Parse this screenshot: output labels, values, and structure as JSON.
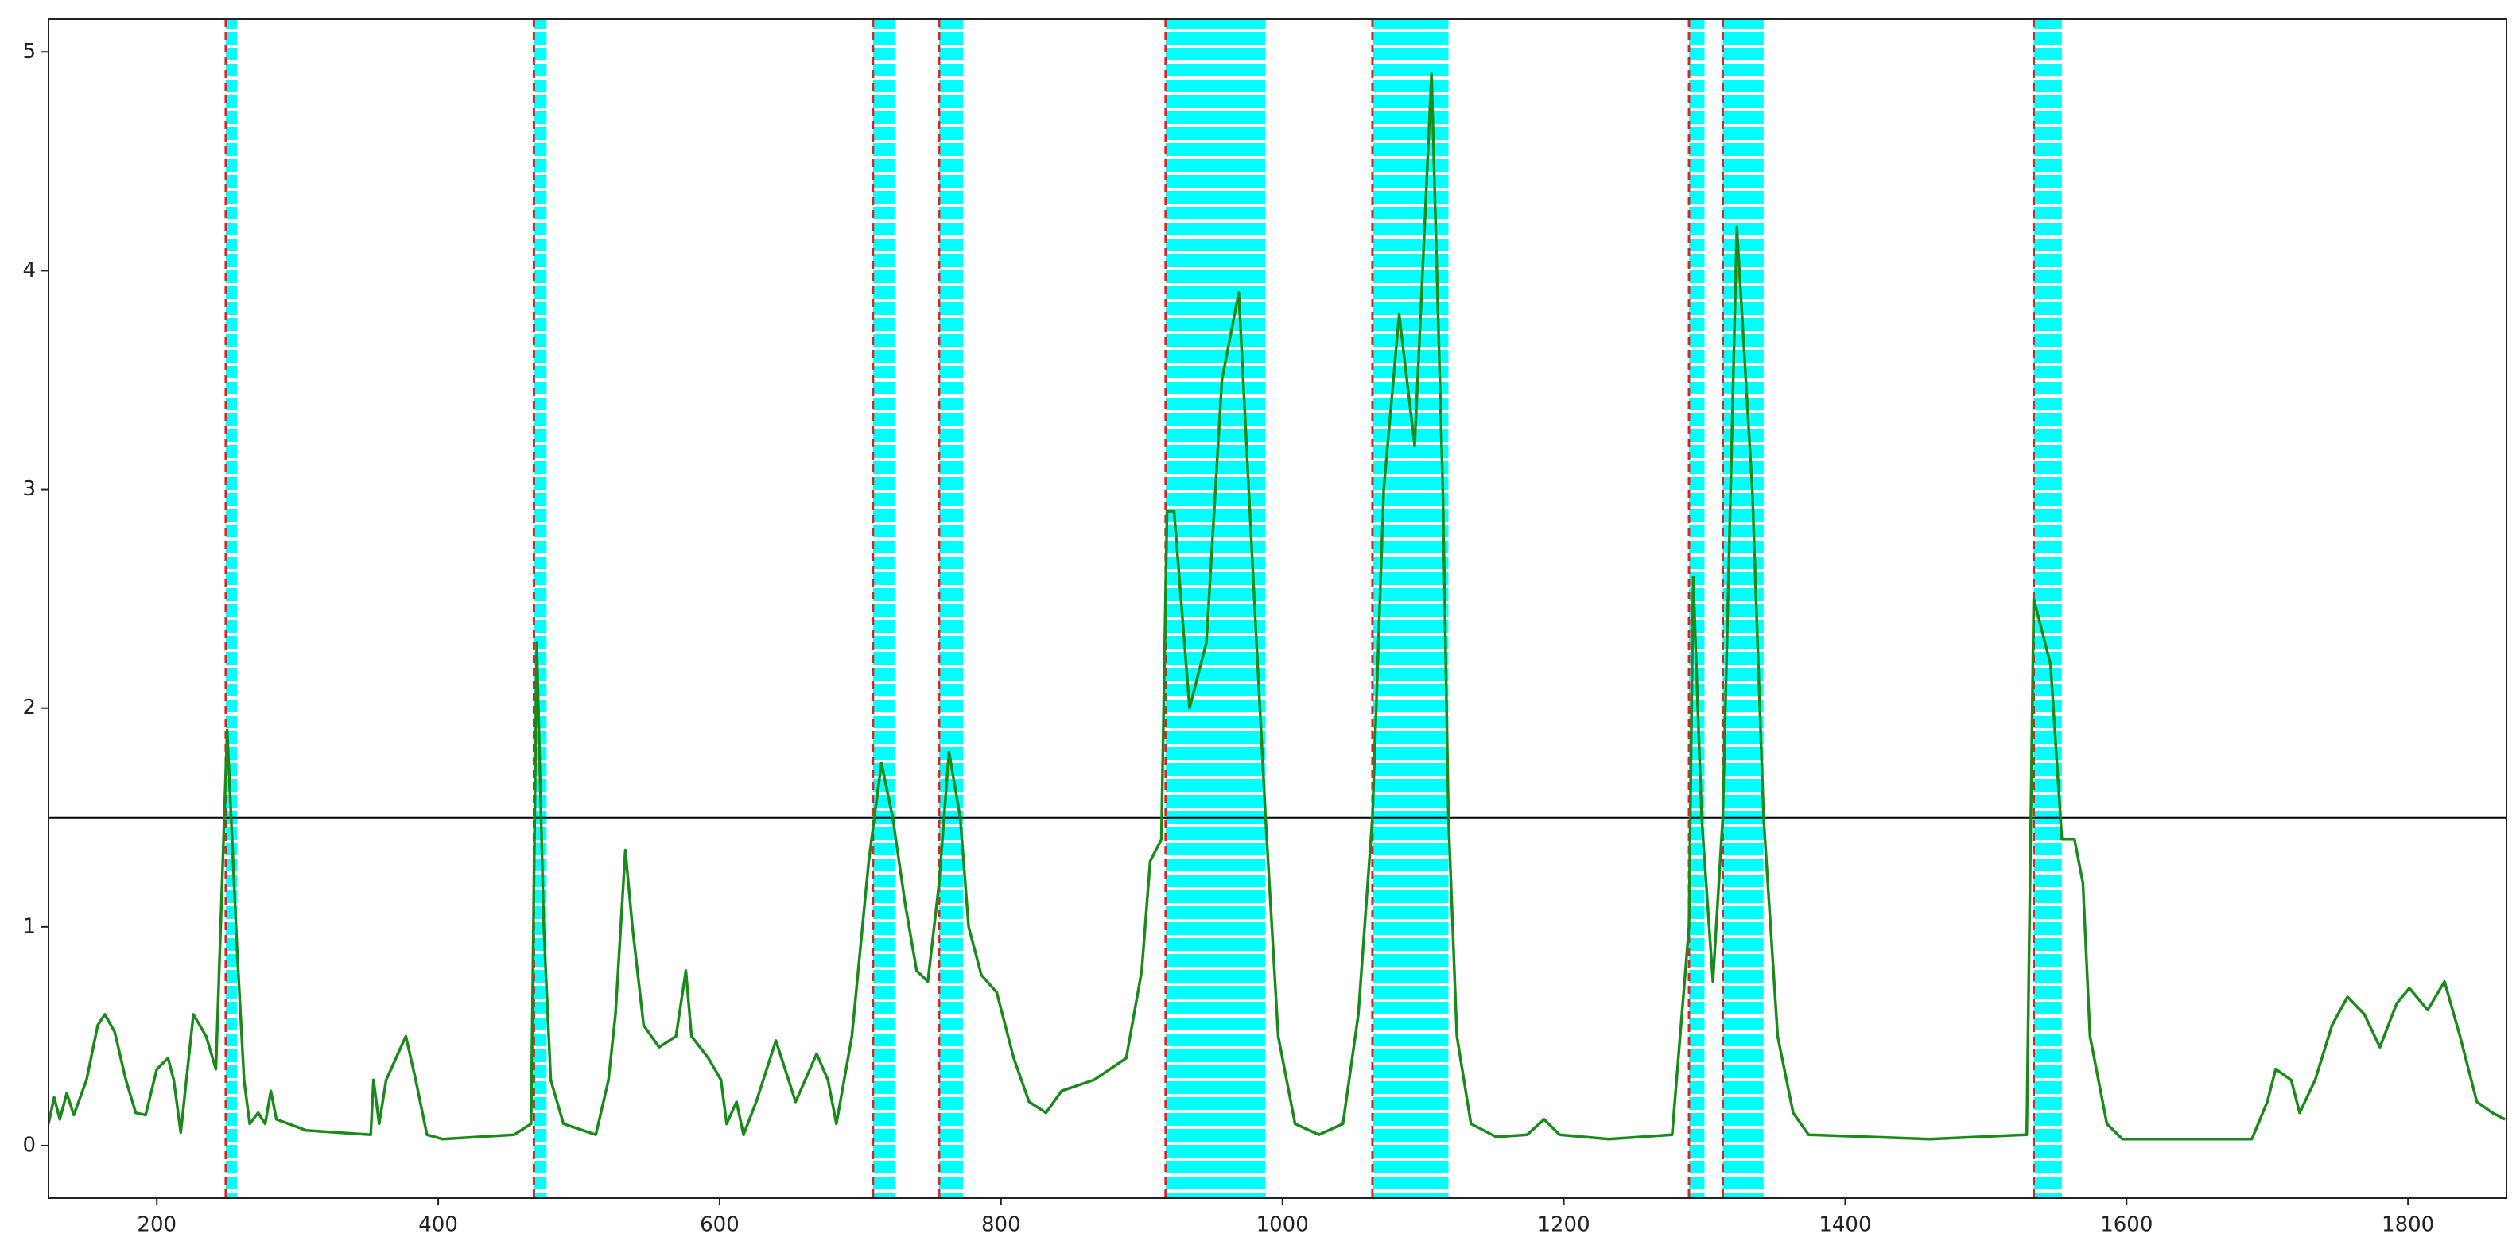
{
  "chart_data": {
    "type": "line",
    "xlim": [
      123,
      1870
    ],
    "ylim": [
      -0.24,
      5.15
    ],
    "xticks": [
      200,
      400,
      600,
      800,
      1000,
      1200,
      1400,
      1600,
      1800
    ],
    "yticks": [
      0,
      1,
      2,
      3,
      4,
      5
    ],
    "grid": false,
    "threshold": 1.5,
    "threshold_color": "#000000",
    "marker_color": "#d62728",
    "span_color": "#00ffff",
    "markers": [
      249,
      468,
      709,
      756,
      917,
      1064,
      1289,
      1313,
      1534
    ],
    "spans": [
      [
        249,
        257
      ],
      [
        468,
        477
      ],
      [
        709,
        725
      ],
      [
        756,
        773
      ],
      [
        917,
        988
      ],
      [
        1064,
        1118
      ],
      [
        1289,
        1300
      ],
      [
        1313,
        1342
      ],
      [
        1534,
        1554
      ]
    ],
    "series": [
      {
        "color": "#1a8a1a",
        "x": [
          123,
          127,
          131,
          136,
          141,
          150,
          158,
          163,
          170,
          178,
          185,
          192,
          200,
          208,
          212,
          217,
          226,
          235,
          242,
          250,
          257,
          262,
          266,
          272,
          277,
          281,
          285,
          306,
          352,
          354,
          358,
          363,
          370,
          377,
          384,
          392,
          403,
          454,
          466,
          470,
          475,
          480,
          489,
          512,
          521,
          526,
          533,
          538,
          546,
          557,
          569,
          576,
          580,
          592,
          601,
          605,
          612,
          617,
          626,
          640,
          649,
          654,
          669,
          677,
          683,
          694,
          706,
          715,
          723,
          732,
          740,
          748,
          756,
          763,
          771,
          777,
          786,
          797,
          809,
          820,
          832,
          843,
          866,
          889,
          900,
          906,
          914,
          918,
          923,
          934,
          946,
          957,
          969,
          980,
          988,
          997,
          1009,
          1026,
          1043,
          1054,
          1064,
          1072,
          1083,
          1094,
          1106,
          1114,
          1118,
          1124,
          1134,
          1152,
          1174,
          1186,
          1197,
          1232,
          1277,
          1289,
          1292,
          1298,
          1306,
          1313,
          1323,
          1334,
          1342,
          1352,
          1363,
          1374,
          1460,
          1529,
          1534,
          1546,
          1554,
          1563,
          1569,
          1574,
          1586,
          1597,
          1689,
          1700,
          1706,
          1717,
          1723,
          1734,
          1746,
          1757,
          1769,
          1780,
          1792,
          1801,
          1814,
          1826,
          1837,
          1849,
          1860,
          1869
        ],
        "values": [
          0.1,
          0.22,
          0.12,
          0.24,
          0.14,
          0.3,
          0.55,
          0.6,
          0.52,
          0.3,
          0.15,
          0.14,
          0.35,
          0.4,
          0.3,
          0.06,
          0.6,
          0.5,
          0.35,
          1.9,
          0.9,
          0.3,
          0.1,
          0.15,
          0.1,
          0.25,
          0.12,
          0.07,
          0.05,
          0.3,
          0.1,
          0.3,
          0.4,
          0.5,
          0.3,
          0.05,
          0.03,
          0.05,
          0.1,
          2.3,
          1.0,
          0.3,
          0.1,
          0.05,
          0.3,
          0.6,
          1.35,
          1.0,
          0.55,
          0.45,
          0.5,
          0.8,
          0.5,
          0.4,
          0.3,
          0.1,
          0.2,
          0.05,
          0.2,
          0.48,
          0.3,
          0.2,
          0.42,
          0.3,
          0.1,
          0.5,
          1.3,
          1.75,
          1.5,
          1.1,
          0.8,
          0.75,
          1.2,
          1.8,
          1.5,
          1.0,
          0.78,
          0.7,
          0.4,
          0.2,
          0.15,
          0.25,
          0.3,
          0.4,
          0.8,
          1.3,
          1.4,
          2.9,
          2.9,
          2.0,
          2.3,
          3.5,
          3.9,
          2.5,
          1.5,
          0.5,
          0.1,
          0.05,
          0.1,
          0.6,
          1.5,
          3.0,
          3.8,
          3.2,
          4.9,
          3.0,
          1.5,
          0.5,
          0.1,
          0.04,
          0.05,
          0.12,
          0.05,
          0.03,
          0.05,
          1.0,
          2.6,
          1.5,
          0.75,
          1.5,
          4.2,
          3.0,
          1.5,
          0.5,
          0.15,
          0.05,
          0.03,
          0.05,
          2.5,
          2.2,
          1.4,
          1.4,
          1.2,
          0.5,
          0.1,
          0.03,
          0.03,
          0.2,
          0.35,
          0.3,
          0.15,
          0.3,
          0.55,
          0.68,
          0.6,
          0.45,
          0.65,
          0.72,
          0.62,
          0.75,
          0.5,
          0.2,
          0.15,
          0.12
        ]
      }
    ]
  }
}
